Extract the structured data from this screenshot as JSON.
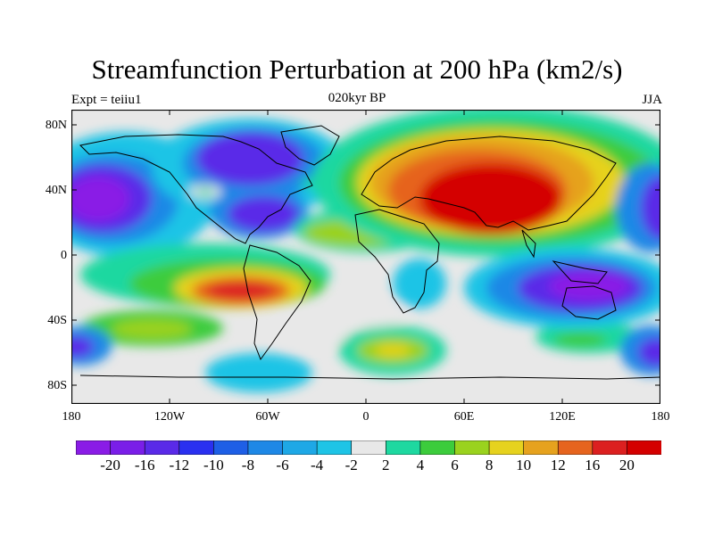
{
  "title": "Streamfunction Perturbation at 200 hPa (km2/s)",
  "left_label": "Expt = teiiu1",
  "center_label": "020kyr BP",
  "right_label": "JJA",
  "lat_ticks": [
    "80N",
    "40N",
    "0",
    "40S",
    "80S"
  ],
  "lon_ticks": [
    "180",
    "120W",
    "60W",
    "0",
    "60E",
    "120E",
    "180"
  ],
  "colorbar": {
    "labels": [
      "-20",
      "-16",
      "-12",
      "-10",
      "-8",
      "-6",
      "-4",
      "-2",
      "2",
      "4",
      "6",
      "8",
      "10",
      "12",
      "16",
      "20"
    ],
    "colors": [
      "#8a1ce6",
      "#7a1ee8",
      "#5a2ae8",
      "#2a30f0",
      "#1e5fe6",
      "#1e88e6",
      "#1ea8e6",
      "#1ec4e6",
      "#e8e8e8",
      "#1ed8a0",
      "#3ccc3c",
      "#9ad21e",
      "#e6d21e",
      "#e6a21e",
      "#e6641e",
      "#dc2020",
      "#d40000"
    ]
  }
}
